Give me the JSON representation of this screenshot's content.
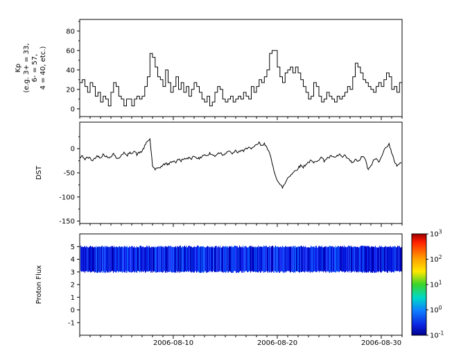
{
  "figure": {
    "background": "#ffffff",
    "axis_color": "#000000",
    "line_color": "#000000",
    "font_color": "#000000"
  },
  "xaxis": {
    "tick_labels": [
      "2006-08-10",
      "2006-08-20",
      "2006-08-30"
    ],
    "tick_label_days": [
      9,
      19,
      29
    ],
    "range_days": [
      0,
      31
    ],
    "minor_tick_interval_days": 1
  },
  "chart_data": [
    {
      "type": "line",
      "name": "kp",
      "ylabel": "Kp (e.g. 3+ = 33, 6- = 57, 4 = 40, etc.)",
      "ylabel_lines": [
        "Kp",
        "(e.g. 3+ = 33,",
        "6- = 57,",
        "4 = 40, etc.)"
      ],
      "ylim": [
        -8,
        92
      ],
      "yticks": [
        0,
        20,
        40,
        60,
        80
      ],
      "yticks_minor": [
        10,
        30,
        50,
        70,
        90
      ],
      "line_style": "step",
      "x_step_days": 0.25,
      "values": [
        27,
        30,
        23,
        17,
        27,
        23,
        13,
        17,
        7,
        13,
        10,
        3,
        17,
        27,
        23,
        13,
        10,
        3,
        10,
        10,
        3,
        10,
        13,
        10,
        13,
        23,
        33,
        57,
        53,
        43,
        33,
        30,
        23,
        40,
        27,
        17,
        23,
        33,
        20,
        27,
        17,
        23,
        13,
        20,
        27,
        23,
        17,
        10,
        7,
        13,
        3,
        7,
        17,
        23,
        20,
        10,
        7,
        10,
        13,
        7,
        10,
        13,
        10,
        17,
        13,
        10,
        23,
        17,
        23,
        30,
        27,
        33,
        40,
        57,
        60,
        60,
        43,
        33,
        27,
        37,
        40,
        43,
        37,
        43,
        37,
        30,
        23,
        17,
        10,
        13,
        27,
        23,
        13,
        7,
        10,
        17,
        13,
        10,
        7,
        13,
        10,
        13,
        17,
        23,
        20,
        33,
        47,
        43,
        37,
        30,
        27,
        23,
        20,
        17,
        23,
        27,
        23,
        30,
        37,
        33,
        20,
        23,
        17,
        27
      ]
    },
    {
      "type": "line",
      "name": "dst",
      "ylabel": "DST",
      "ylim": [
        -155,
        55
      ],
      "yticks": [
        0,
        -50,
        -100,
        -150
      ],
      "yticks_minor": [
        25,
        -25,
        -75,
        -125
      ],
      "line_style": "jagged",
      "x_step_days": 0.25,
      "values": [
        -20,
        -15,
        -22,
        -18,
        -20,
        -25,
        -18,
        -15,
        -18,
        -12,
        -15,
        -20,
        -15,
        -10,
        -18,
        -22,
        -12,
        -8,
        -15,
        -10,
        -8,
        -5,
        -12,
        -8,
        -5,
        5,
        15,
        20,
        -35,
        -45,
        -40,
        -38,
        -35,
        -30,
        -33,
        -28,
        -25,
        -28,
        -22,
        -25,
        -20,
        -23,
        -18,
        -20,
        -15,
        -18,
        -22,
        -15,
        -12,
        -15,
        -10,
        -13,
        -15,
        -10,
        -8,
        -12,
        -10,
        -5,
        -8,
        -10,
        -5,
        -8,
        -3,
        -6,
        0,
        5,
        -2,
        3,
        8,
        12,
        5,
        10,
        5,
        -10,
        -30,
        -50,
        -65,
        -75,
        -80,
        -72,
        -60,
        -55,
        -50,
        -45,
        -40,
        -35,
        -38,
        -32,
        -28,
        -25,
        -30,
        -25,
        -22,
        -18,
        -25,
        -20,
        -18,
        -15,
        -20,
        -15,
        -12,
        -18,
        -15,
        -20,
        -25,
        -30,
        -22,
        -28,
        -20,
        -15,
        -25,
        -45,
        -35,
        -25,
        -20,
        -28,
        -15,
        -5,
        5,
        10,
        -10,
        -25,
        -35,
        -30
      ]
    },
    {
      "type": "heatmap",
      "name": "proton-flux",
      "ylabel": "Proton Flux",
      "ylim": [
        -2,
        6
      ],
      "yticks": [
        -1,
        0,
        1,
        2,
        3,
        4,
        5
      ],
      "yticks_minor": [],
      "band": {
        "y_min": 3,
        "y_max": 5,
        "palette": [
          "#0000b0",
          "#0009c8",
          "#0214e0",
          "#1830f2",
          "#2b49ff",
          "#0a5cff",
          "#0120d4"
        ]
      },
      "colorbar": {
        "scale": "log",
        "tick_exponents": [
          3,
          2,
          1,
          0,
          -1
        ],
        "stops": [
          {
            "pos": 0.0,
            "color": "#9e0000"
          },
          {
            "pos": 0.08,
            "color": "#ff1e00"
          },
          {
            "pos": 0.24,
            "color": "#ff9d00"
          },
          {
            "pos": 0.37,
            "color": "#ffe800"
          },
          {
            "pos": 0.5,
            "color": "#39d32c"
          },
          {
            "pos": 0.63,
            "color": "#00d9c8"
          },
          {
            "pos": 0.76,
            "color": "#0f7dff"
          },
          {
            "pos": 0.9,
            "color": "#0b24e0"
          },
          {
            "pos": 1.0,
            "color": "#000090"
          }
        ]
      }
    }
  ]
}
